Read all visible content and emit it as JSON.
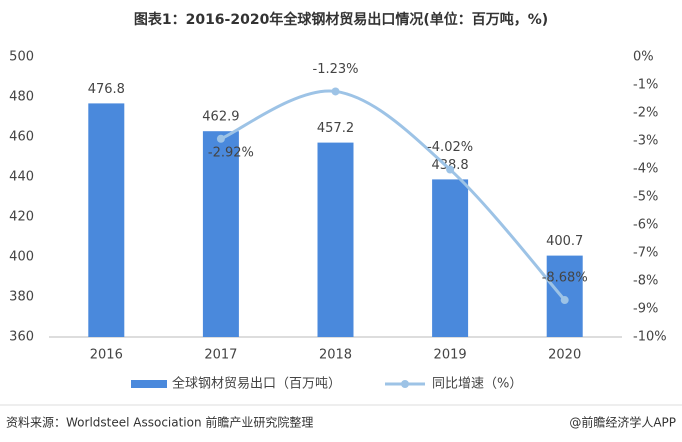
{
  "chart_data": {
    "type": "bar",
    "title": "图表1：2016-2020年全球钢材贸易出口情况(单位：百万吨，%)",
    "categories": [
      "2016",
      "2017",
      "2018",
      "2019",
      "2020"
    ],
    "series": [
      {
        "name": "全球钢材贸易出口（百万吨）",
        "type": "bar",
        "color": "#4a89dc",
        "values": [
          476.8,
          462.9,
          457.2,
          438.8,
          400.7
        ]
      },
      {
        "name": "同比增速（%）",
        "type": "line",
        "axis": "y2",
        "color": "#9dc3e6",
        "values": [
          null,
          -2.92,
          -1.23,
          -4.02,
          -8.68
        ],
        "value_labels": [
          null,
          "-2.92%",
          "-1.23%",
          "-4.02%",
          "-8.68%"
        ]
      }
    ],
    "ylim": [
      360,
      500
    ],
    "yticks": [
      360,
      380,
      400,
      420,
      440,
      460,
      480,
      500
    ],
    "y2lim": [
      -10,
      0
    ],
    "y2ticks": [
      {
        "value": 0,
        "label": "0%"
      },
      {
        "value": -1,
        "label": "-1%"
      },
      {
        "value": -2,
        "label": "-2%"
      },
      {
        "value": -3,
        "label": "-3%"
      },
      {
        "value": -4,
        "label": "-4%"
      },
      {
        "value": -5,
        "label": "-5%"
      },
      {
        "value": -6,
        "label": "-6%"
      },
      {
        "value": -7,
        "label": "-7%"
      },
      {
        "value": -8,
        "label": "-8%"
      },
      {
        "value": -9,
        "label": "-9%"
      },
      {
        "value": -10,
        "label": "-10%"
      }
    ],
    "source": "资料来源：Worldsteel Association 前瞻产业研究院整理",
    "credit": "@前瞻经济学人APP"
  }
}
